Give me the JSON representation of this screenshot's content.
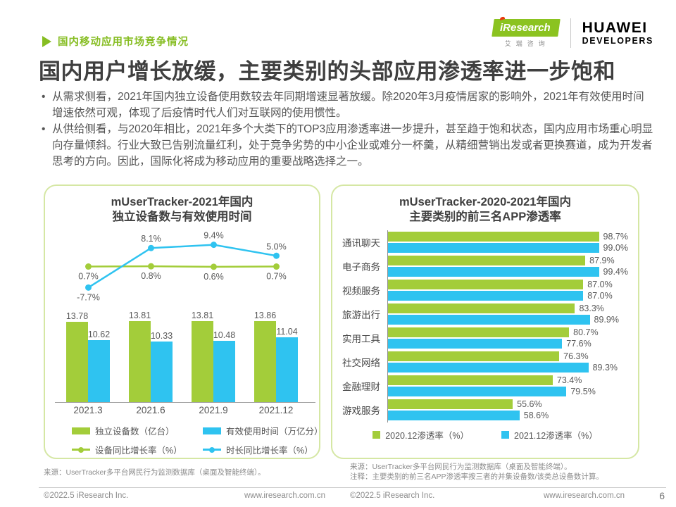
{
  "page": {
    "kicker": "国内移动应用市场竞争情况",
    "title": "国内用户增长放缓，主要类别的头部应用渗透率进一步饱和",
    "bullets": [
      "从需求侧看，2021年国内独立设备使用数较去年同期增速显著放缓。除2020年3月疫情居家的影响外，2021年有效使用时间增速依然可观，体现了后疫情时代人们对互联网的使用惯性。",
      "从供给侧看，与2020年相比，2021年多个大类下的TOP3应用渗透率进一步提升，甚至趋于饱和状态，国内应用市场重心明显向存量倾斜。行业大致已告别流量红利，处于竞争劣势的中小企业或难分一杯羹，从精细营销出发或者更换赛道，成为开发者思考的方向。因此，国际化将成为移动应用的重要战略选择之一。"
    ]
  },
  "logos": {
    "iresearch_name": "iResearch",
    "iresearch_cn": "艾瑞咨询",
    "huawei_line1": "HUAWEI",
    "huawei_line2": "DEVELOPERS"
  },
  "colors": {
    "green": "#a3cd3a",
    "blue": "#2fc3f0",
    "brand_green": "#86bd22",
    "title_dark": "#3f3f3f"
  },
  "chart_data": [
    {
      "type": "bar",
      "subtype": "grouped-bars-with-lines-combo",
      "title_lines": [
        "mUserTracker-2021年国内",
        "独立设备数与有效使用时间"
      ],
      "categories": [
        "2021.3",
        "2021.6",
        "2021.9",
        "2021.12"
      ],
      "series": [
        {
          "name": "独立设备数（亿台）",
          "kind": "bar",
          "color": "green",
          "values": [
            13.78,
            13.81,
            13.81,
            13.86
          ]
        },
        {
          "name": "有效使用时间（万亿分）",
          "kind": "bar",
          "color": "blue",
          "values": [
            10.62,
            10.33,
            10.48,
            11.04
          ]
        },
        {
          "name": "设备同比增长率（%）",
          "kind": "line",
          "color": "green",
          "values": [
            0.7,
            0.8,
            0.6,
            0.7
          ]
        },
        {
          "name": "时长同比增长率（%）",
          "kind": "line",
          "color": "blue",
          "values": [
            -7.7,
            8.1,
            9.4,
            5.0
          ]
        }
      ],
      "legend_position": "bottom",
      "grid": false,
      "source": "来源：UserTracker多平台网民行为监测数据库（桌面及智能终端）。"
    },
    {
      "type": "bar",
      "subtype": "horizontal-grouped",
      "title_lines": [
        "mUserTracker-2020-2021年国内",
        "主要类别的前三名APP渗透率"
      ],
      "categories": [
        "通讯聊天",
        "电子商务",
        "视频服务",
        "旅游出行",
        "实用工具",
        "社交网络",
        "金融理财",
        "游戏服务"
      ],
      "series": [
        {
          "name": "2020.12渗透率（%）",
          "color": "green",
          "values": [
            98.7,
            87.9,
            87.0,
            83.3,
            80.7,
            76.3,
            73.4,
            55.6
          ]
        },
        {
          "name": "2021.12渗透率（%）",
          "color": "blue",
          "values": [
            99.0,
            99.4,
            87.0,
            89.9,
            77.6,
            89.3,
            79.5,
            58.6
          ]
        }
      ],
      "xlim": [
        0,
        100
      ],
      "legend_position": "bottom",
      "grid": false,
      "source_lines": [
        "来源：UserTracker多平台网民行为监测数据库（桌面及智能终端）。",
        "注释：主要类别的前三名APP渗透率按三者的并集设备数/该类总设备数计算。"
      ]
    }
  ],
  "footer": {
    "copyright": "©2022.5 iResearch Inc.",
    "site": "www.iresearch.com.cn",
    "page_number": "6"
  }
}
